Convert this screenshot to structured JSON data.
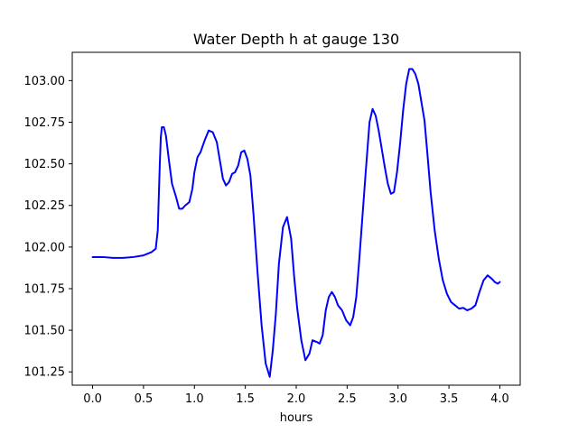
{
  "chart_data": {
    "type": "line",
    "title": "Water Depth h at gauge 130",
    "xlabel": "hours",
    "ylabel": "",
    "xlim": [
      -0.2,
      4.2
    ],
    "ylim": [
      101.17,
      103.17
    ],
    "xticks": [
      0.0,
      0.5,
      1.0,
      1.5,
      2.0,
      2.5,
      3.0,
      3.5,
      4.0
    ],
    "xtick_labels": [
      "0.0",
      "0.5",
      "1.0",
      "1.5",
      "2.0",
      "2.5",
      "3.0",
      "3.5",
      "4.0"
    ],
    "yticks": [
      101.25,
      101.5,
      101.75,
      102.0,
      102.25,
      102.5,
      102.75,
      103.0
    ],
    "ytick_labels": [
      "101.25",
      "101.50",
      "101.75",
      "102.00",
      "102.25",
      "102.50",
      "102.75",
      "103.00"
    ],
    "grid": false,
    "colors": {
      "series": "#0000ff",
      "axes": "#000000",
      "background": "#ffffff"
    },
    "series": [
      {
        "name": "",
        "x": [
          0.0,
          0.1,
          0.2,
          0.3,
          0.4,
          0.5,
          0.58,
          0.62,
          0.64,
          0.65,
          0.66,
          0.67,
          0.68,
          0.7,
          0.72,
          0.75,
          0.78,
          0.82,
          0.85,
          0.88,
          0.91,
          0.95,
          0.98,
          1.0,
          1.03,
          1.06,
          1.1,
          1.14,
          1.18,
          1.22,
          1.25,
          1.28,
          1.31,
          1.34,
          1.37,
          1.4,
          1.43,
          1.46,
          1.49,
          1.52,
          1.55,
          1.58,
          1.62,
          1.66,
          1.7,
          1.74,
          1.77,
          1.8,
          1.83,
          1.87,
          1.91,
          1.95,
          1.98,
          2.01,
          2.05,
          2.09,
          2.13,
          2.16,
          2.2,
          2.23,
          2.26,
          2.29,
          2.32,
          2.35,
          2.38,
          2.41,
          2.45,
          2.49,
          2.53,
          2.56,
          2.59,
          2.62,
          2.65,
          2.68,
          2.72,
          2.75,
          2.78,
          2.81,
          2.84,
          2.87,
          2.9,
          2.93,
          2.96,
          2.99,
          3.02,
          3.05,
          3.08,
          3.11,
          3.14,
          3.17,
          3.2,
          3.23,
          3.26,
          3.29,
          3.32,
          3.36,
          3.4,
          3.44,
          3.48,
          3.52,
          3.56,
          3.6,
          3.64,
          3.68,
          3.72,
          3.76,
          3.8,
          3.84,
          3.88,
          3.92,
          3.95,
          3.98,
          4.0
        ],
        "values": [
          101.94,
          101.94,
          101.935,
          101.935,
          101.94,
          101.95,
          101.97,
          101.99,
          102.1,
          102.3,
          102.5,
          102.66,
          102.72,
          102.72,
          102.67,
          102.52,
          102.38,
          102.3,
          102.23,
          102.23,
          102.25,
          102.27,
          102.35,
          102.45,
          102.54,
          102.57,
          102.64,
          102.7,
          102.69,
          102.63,
          102.52,
          102.41,
          102.37,
          102.39,
          102.44,
          102.45,
          102.49,
          102.57,
          102.58,
          102.53,
          102.43,
          102.2,
          101.85,
          101.53,
          101.3,
          101.22,
          101.38,
          101.6,
          101.9,
          102.12,
          102.18,
          102.05,
          101.82,
          101.63,
          101.44,
          101.32,
          101.36,
          101.44,
          101.43,
          101.42,
          101.47,
          101.62,
          101.7,
          101.73,
          101.7,
          101.65,
          101.62,
          101.56,
          101.53,
          101.58,
          101.7,
          101.93,
          102.18,
          102.43,
          102.75,
          102.83,
          102.79,
          102.7,
          102.59,
          102.48,
          102.38,
          102.32,
          102.33,
          102.45,
          102.62,
          102.82,
          102.98,
          103.07,
          103.07,
          103.04,
          102.98,
          102.87,
          102.76,
          102.55,
          102.33,
          102.1,
          101.93,
          101.8,
          101.72,
          101.67,
          101.65,
          101.63,
          101.635,
          101.62,
          101.63,
          101.65,
          101.73,
          101.8,
          101.83,
          101.81,
          101.79,
          101.78,
          101.79
        ]
      }
    ]
  }
}
